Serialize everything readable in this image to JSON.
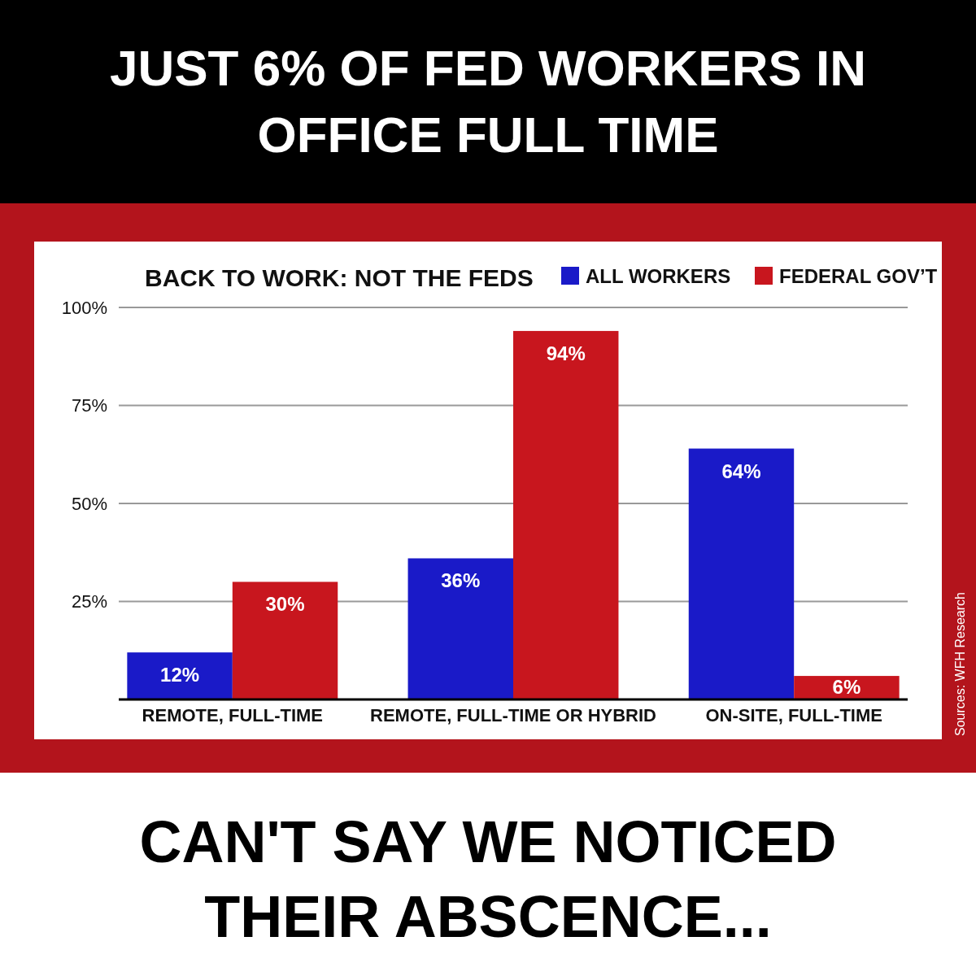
{
  "chart_data": {
    "type": "bar",
    "title": "JUST 6% OF FED WORKERS IN OFFICE FULL TIME",
    "subtitle": "BACK TO WORK: NOT THE FEDS",
    "categories": [
      "REMOTE, FULL-TIME",
      "REMOTE, FULL-TIME OR HYBRID",
      "ON-SITE, FULL-TIME"
    ],
    "series": [
      {
        "name": "ALL WORKERS",
        "color": "#1a1ac8",
        "values": [
          12,
          36,
          64
        ],
        "value_labels": [
          "12%",
          "36%",
          "64%"
        ]
      },
      {
        "name": "FEDERAL GOV’T",
        "color": "#c8161e",
        "values": [
          30,
          94,
          6
        ],
        "value_labels": [
          "30%",
          "94%",
          "6%"
        ]
      }
    ],
    "ylim": [
      0,
      100
    ],
    "yticks": [
      {
        "value": 25,
        "label": "25%"
      },
      {
        "value": 50,
        "label": "50%"
      },
      {
        "value": 75,
        "label": "75%"
      },
      {
        "value": 100,
        "label": "100%"
      }
    ],
    "grid": "y",
    "legend": "top right",
    "annotations": [
      "CAN'T SAY WE NOTICED THEIR ABSCENCE...",
      "Sources: WFH Research"
    ]
  }
}
